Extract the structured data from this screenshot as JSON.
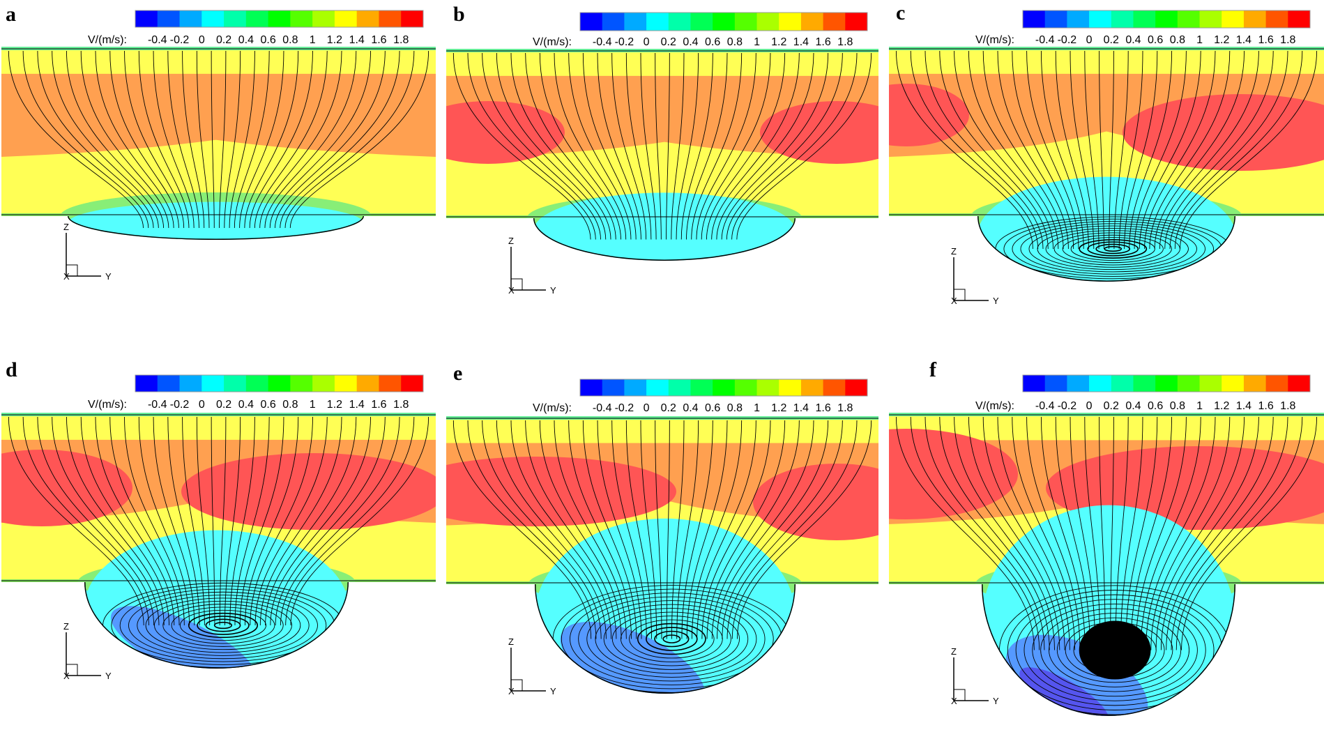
{
  "figure": {
    "colors": {
      "field_cyan": "#55ffff",
      "field_yellow": "#ffff55",
      "field_orange": "#ffa050",
      "field_red": "#ff5555",
      "field_blue": "#5599ff",
      "field_darkblue": "#5555ee",
      "streamline": "#000000"
    }
  },
  "chart_data": [
    {
      "panel": "a",
      "type": "contour",
      "colorbar_label": "V/(m/s):",
      "ticks": [
        "-0.4",
        "-0.2",
        "0",
        "0.2",
        "0.4",
        "0.6",
        "0.8",
        "1",
        "1.2",
        "1.4",
        "1.6",
        "1.8"
      ],
      "levels": [
        "#0000ff",
        "#0055ff",
        "#00aaff",
        "#00ffff",
        "#00ffaa",
        "#00ff55",
        "#00ff00",
        "#55ff00",
        "#aaff00",
        "#ffff00",
        "#ffaa00",
        "#ff5500",
        "#ff0000"
      ],
      "axes": {
        "vertical": "Z",
        "horizontal": "Y",
        "normal": "X"
      },
      "streamlines": true
    },
    {
      "panel": "b",
      "type": "contour",
      "colorbar_label": "V/(m/s):",
      "ticks": [
        "-0.4",
        "-0.2",
        "0",
        "0.2",
        "0.4",
        "0.6",
        "0.8",
        "1",
        "1.2",
        "1.4",
        "1.6",
        "1.8"
      ],
      "levels": [
        "#0000ff",
        "#0055ff",
        "#00aaff",
        "#00ffff",
        "#00ffaa",
        "#00ff55",
        "#00ff00",
        "#55ff00",
        "#aaff00",
        "#ffff00",
        "#ffaa00",
        "#ff5500",
        "#ff0000"
      ],
      "axes": {
        "vertical": "Z",
        "horizontal": "Y",
        "normal": "X"
      },
      "streamlines": true
    },
    {
      "panel": "c",
      "type": "contour",
      "colorbar_label": "V/(m/s):",
      "ticks": [
        "-0.4",
        "-0.2",
        "0",
        "0.2",
        "0.4",
        "0.6",
        "0.8",
        "1",
        "1.2",
        "1.4",
        "1.6",
        "1.8"
      ],
      "levels": [
        "#0000ff",
        "#0055ff",
        "#00aaff",
        "#00ffff",
        "#00ffaa",
        "#00ff55",
        "#00ff00",
        "#55ff00",
        "#aaff00",
        "#ffff00",
        "#ffaa00",
        "#ff5500",
        "#ff0000"
      ],
      "axes": {
        "vertical": "Z",
        "horizontal": "Y",
        "normal": "X"
      },
      "streamlines": true
    },
    {
      "panel": "d",
      "type": "contour",
      "colorbar_label": "V/(m/s):",
      "ticks": [
        "-0.4",
        "-0.2",
        "0",
        "0.2",
        "0.4",
        "0.6",
        "0.8",
        "1",
        "1.2",
        "1.4",
        "1.6",
        "1.8"
      ],
      "levels": [
        "#0000ff",
        "#0055ff",
        "#00aaff",
        "#00ffff",
        "#00ffaa",
        "#00ff55",
        "#00ff00",
        "#55ff00",
        "#aaff00",
        "#ffff00",
        "#ffaa00",
        "#ff5500",
        "#ff0000"
      ],
      "axes": {
        "vertical": "Z",
        "horizontal": "Y",
        "normal": "X"
      },
      "streamlines": true
    },
    {
      "panel": "e",
      "type": "contour",
      "colorbar_label": "V/(m/s):",
      "ticks": [
        "-0.4",
        "-0.2",
        "0",
        "0.2",
        "0.4",
        "0.6",
        "0.8",
        "1",
        "1.2",
        "1.4",
        "1.6",
        "1.8"
      ],
      "levels": [
        "#0000ff",
        "#0055ff",
        "#00aaff",
        "#00ffff",
        "#00ffaa",
        "#00ff55",
        "#00ff00",
        "#55ff00",
        "#aaff00",
        "#ffff00",
        "#ffaa00",
        "#ff5500",
        "#ff0000"
      ],
      "axes": {
        "vertical": "Z",
        "horizontal": "Y",
        "normal": "X"
      },
      "streamlines": true
    },
    {
      "panel": "f",
      "type": "contour",
      "colorbar_label": "V/(m/s):",
      "ticks": [
        "-0.4",
        "-0.2",
        "0",
        "0.2",
        "0.4",
        "0.6",
        "0.8",
        "1",
        "1.2",
        "1.4",
        "1.6",
        "1.8"
      ],
      "levels": [
        "#0000ff",
        "#0055ff",
        "#00aaff",
        "#00ffff",
        "#00ffaa",
        "#00ff55",
        "#00ff00",
        "#55ff00",
        "#aaff00",
        "#ffff00",
        "#ffaa00",
        "#ff5500",
        "#ff0000"
      ],
      "axes": {
        "vertical": "Z",
        "horizontal": "Y",
        "normal": "X"
      },
      "streamlines": true
    }
  ]
}
